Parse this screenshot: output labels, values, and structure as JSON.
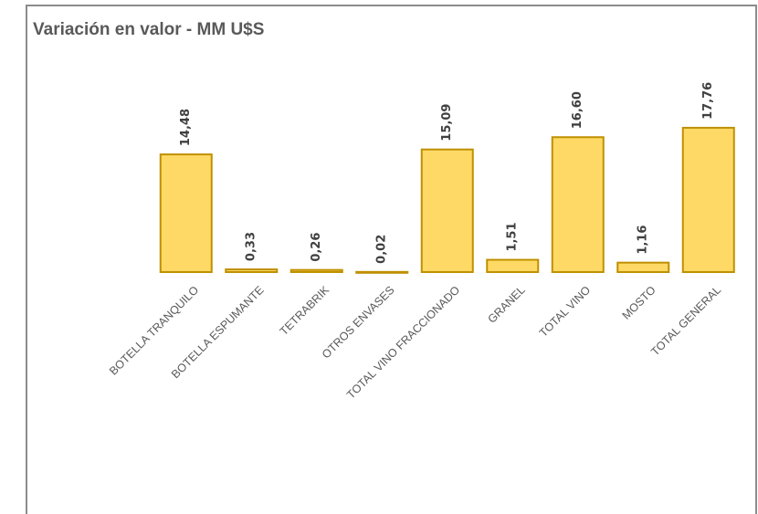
{
  "chart_data": {
    "type": "bar",
    "title": "Variación en valor - MM U$S",
    "categories": [
      "BOTELLA TRANQUILO",
      "BOTELLA ESPUMANTE",
      "TETRABRIK",
      "OTROS ENVASES",
      "TOTAL VINO FRACCIONADO",
      "GRANEL",
      "TOTAL VINO",
      "MOSTO",
      "TOTAL GENERAL"
    ],
    "values": [
      14.48,
      0.33,
      0.26,
      0.02,
      15.09,
      1.51,
      16.6,
      1.16,
      17.76
    ],
    "value_labels": [
      "14,48",
      "0,33",
      "0,26",
      "0,02",
      "15,09",
      "1,51",
      "16,60",
      "1,16",
      "17,76"
    ],
    "color": "#FFD966",
    "edge_color": "#BF9000",
    "ylim": [
      0,
      20
    ]
  }
}
